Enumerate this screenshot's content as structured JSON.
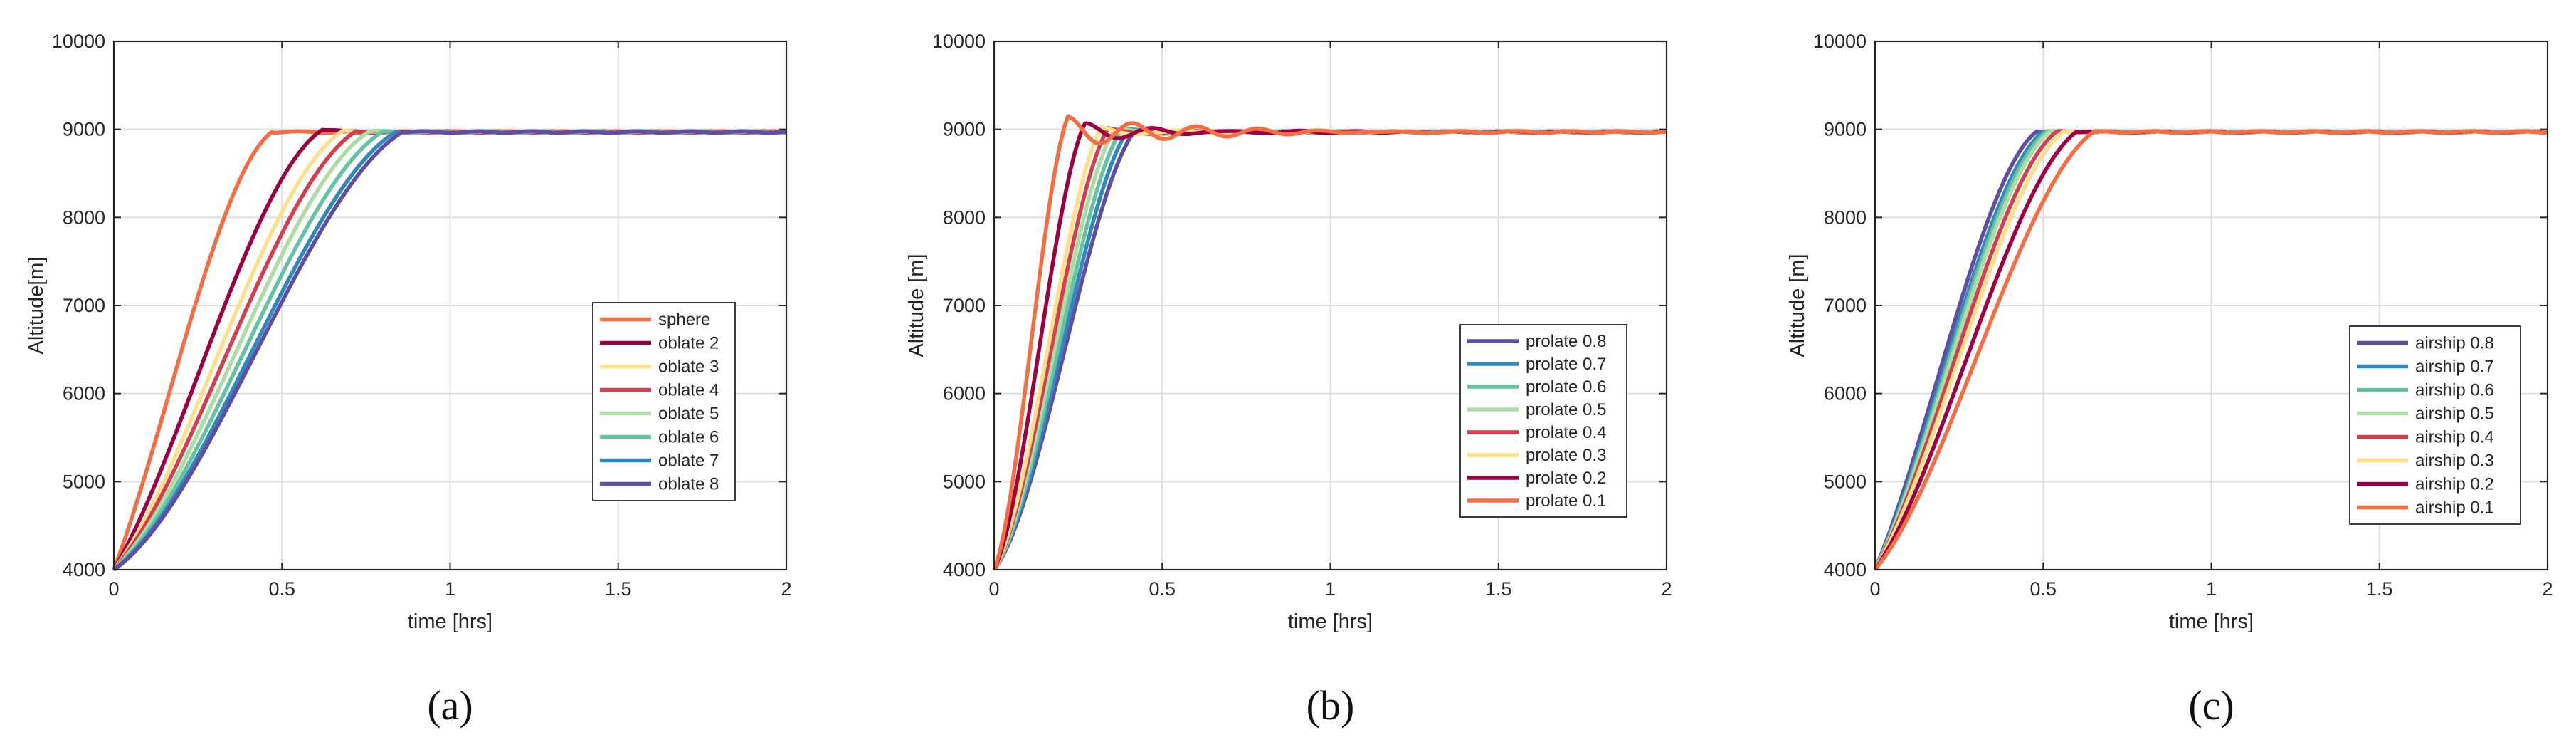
{
  "chart_data": [
    {
      "type": "line",
      "panel_label": "(a)",
      "panel_letter": "a",
      "xlabel": "time [hrs]",
      "ylabel": "Altitude[m]",
      "xlim": [
        0,
        2
      ],
      "ylim": [
        4000,
        10000
      ],
      "xticks": [
        0,
        0.5,
        1,
        1.5,
        2
      ],
      "xtick_labels": [
        "0",
        "0.5",
        "1",
        "1.5",
        "2"
      ],
      "yticks": [
        4000,
        5000,
        6000,
        7000,
        8000,
        9000,
        10000
      ],
      "ytick_labels": [
        "4000",
        "5000",
        "6000",
        "7000",
        "8000",
        "9000",
        "10000"
      ],
      "grid": true,
      "legend_position": "center-right",
      "series": [
        {
          "name": "sphere",
          "color": "#f46d43",
          "tc": 0.47,
          "overshoot": 0,
          "damp": 7,
          "osc": 0,
          "early": 0.35
        },
        {
          "name": "oblate 2",
          "color": "#9e0142",
          "tc": 0.62,
          "overshoot": 25,
          "damp": 10,
          "osc": 18,
          "early": 0.25
        },
        {
          "name": "oblate 3",
          "color": "#fee08b",
          "tc": 0.68,
          "overshoot": 12,
          "damp": 10,
          "osc": 18,
          "early": 0.18
        },
        {
          "name": "oblate 4",
          "color": "#d53e4f",
          "tc": 0.72,
          "overshoot": 10,
          "damp": 10,
          "osc": 18,
          "early": 0.14
        },
        {
          "name": "oblate 5",
          "color": "#abdda4",
          "tc": 0.76,
          "overshoot": 8,
          "damp": 10,
          "osc": 18,
          "early": 0.1
        },
        {
          "name": "oblate 6",
          "color": "#66c2a5",
          "tc": 0.8,
          "overshoot": 6,
          "damp": 10,
          "osc": 18,
          "early": 0.07
        },
        {
          "name": "oblate 7",
          "color": "#3288bd",
          "tc": 0.84,
          "overshoot": 5,
          "damp": 10,
          "osc": 18,
          "early": 0.05
        },
        {
          "name": "oblate 8",
          "color": "#5e4fa2",
          "tc": 0.86,
          "overshoot": 4,
          "damp": 10,
          "osc": 18,
          "early": 0.03
        }
      ]
    },
    {
      "type": "line",
      "panel_label": "(b)",
      "panel_letter": "b",
      "xlabel": "time [hrs]",
      "ylabel": "Altitude [m]",
      "xlim": [
        0,
        2
      ],
      "ylim": [
        4000,
        10000
      ],
      "xticks": [
        0,
        0.5,
        1,
        1.5,
        2
      ],
      "xtick_labels": [
        "0",
        "0.5",
        "1",
        "1.5",
        "2"
      ],
      "yticks": [
        4000,
        5000,
        6000,
        7000,
        8000,
        9000,
        10000
      ],
      "ytick_labels": [
        "4000",
        "5000",
        "6000",
        "7000",
        "8000",
        "9000",
        "10000"
      ],
      "grid": true,
      "legend_position": "lower-right",
      "series": [
        {
          "name": "prolate 0.8",
          "color": "#5e4fa2",
          "tc": 0.42,
          "overshoot": 20,
          "damp": 5,
          "osc": 28,
          "early": 0.0
        },
        {
          "name": "prolate 0.7",
          "color": "#3288bd",
          "tc": 0.4,
          "overshoot": 25,
          "damp": 5,
          "osc": 28,
          "early": 0.0
        },
        {
          "name": "prolate 0.6",
          "color": "#66c2a5",
          "tc": 0.38,
          "overshoot": 30,
          "damp": 5,
          "osc": 28,
          "early": 0.0
        },
        {
          "name": "prolate 0.5",
          "color": "#abdda4",
          "tc": 0.36,
          "overshoot": 38,
          "damp": 5,
          "osc": 28,
          "early": 0.0
        },
        {
          "name": "prolate 0.4",
          "color": "#d53e4f",
          "tc": 0.34,
          "overshoot": 45,
          "damp": 5,
          "osc": 28,
          "early": 0.0
        },
        {
          "name": "prolate 0.3",
          "color": "#fee08b",
          "tc": 0.32,
          "overshoot": 55,
          "damp": 5,
          "osc": 28,
          "early": 0.0
        },
        {
          "name": "prolate 0.2",
          "color": "#9e0142",
          "tc": 0.27,
          "overshoot": 95,
          "damp": 4,
          "osc": 30,
          "early": 0.0
        },
        {
          "name": "prolate 0.1",
          "color": "#f46d43",
          "tc": 0.22,
          "overshoot": 180,
          "damp": 3,
          "osc": 33,
          "early": 0.0
        }
      ]
    },
    {
      "type": "line",
      "panel_label": "(c)",
      "panel_letter": "c",
      "xlabel": "time [hrs]",
      "ylabel": "Altitude [m]",
      "xlim": [
        0,
        2
      ],
      "ylim": [
        4000,
        10000
      ],
      "xticks": [
        0,
        0.5,
        1,
        1.5,
        2
      ],
      "xtick_labels": [
        "0",
        "0.5",
        "1",
        "1.5",
        "2"
      ],
      "yticks": [
        4000,
        5000,
        6000,
        7000,
        8000,
        9000,
        10000
      ],
      "ytick_labels": [
        "4000",
        "5000",
        "6000",
        "7000",
        "8000",
        "9000",
        "10000"
      ],
      "grid": true,
      "legend_position": "lower-right",
      "series": [
        {
          "name": "airship 0.8",
          "color": "#5e4fa2",
          "tc": 0.48,
          "overshoot": 4,
          "damp": 10,
          "osc": 18,
          "early": 0.3
        },
        {
          "name": "airship 0.7",
          "color": "#3288bd",
          "tc": 0.5,
          "overshoot": 4,
          "damp": 10,
          "osc": 18,
          "early": 0.28
        },
        {
          "name": "airship 0.6",
          "color": "#66c2a5",
          "tc": 0.51,
          "overshoot": 4,
          "damp": 10,
          "osc": 18,
          "early": 0.26
        },
        {
          "name": "airship 0.5",
          "color": "#abdda4",
          "tc": 0.52,
          "overshoot": 4,
          "damp": 10,
          "osc": 18,
          "early": 0.24
        },
        {
          "name": "airship 0.4",
          "color": "#d53e4f",
          "tc": 0.54,
          "overshoot": 5,
          "damp": 10,
          "osc": 18,
          "early": 0.22
        },
        {
          "name": "airship 0.3",
          "color": "#fee08b",
          "tc": 0.56,
          "overshoot": 5,
          "damp": 10,
          "osc": 18,
          "early": 0.2
        },
        {
          "name": "airship 0.2",
          "color": "#9e0142",
          "tc": 0.6,
          "overshoot": 6,
          "damp": 10,
          "osc": 18,
          "early": 0.16
        },
        {
          "name": "airship 0.1",
          "color": "#f46d43",
          "tc": 0.65,
          "overshoot": 3,
          "damp": 10,
          "osc": 18,
          "early": 0.12
        }
      ]
    }
  ],
  "steady_altitude": 8970
}
